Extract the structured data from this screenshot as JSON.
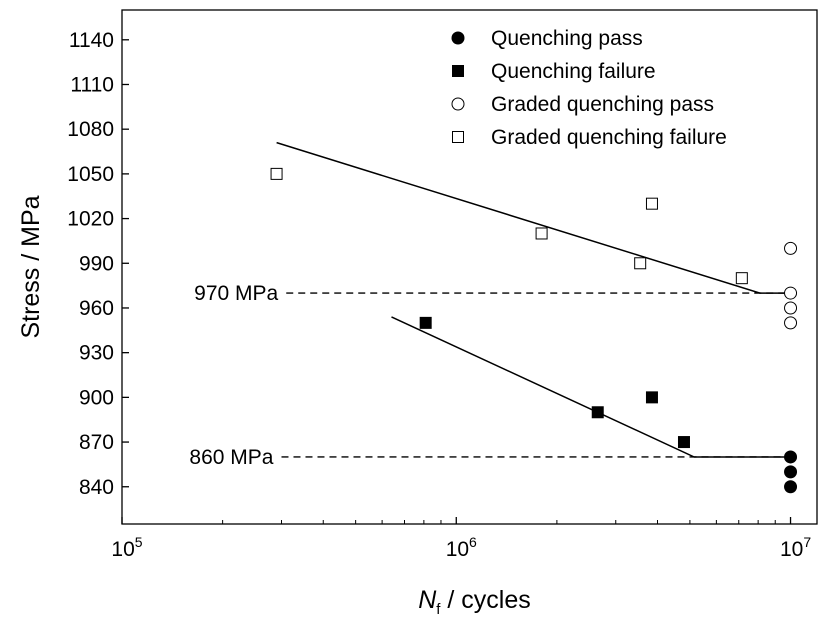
{
  "chart_data": {
    "type": "scatter",
    "x_scale": "log",
    "xlim": [
      100000,
      12000000
    ],
    "ylim": [
      815,
      1160
    ],
    "x_ticks": [
      {
        "value": 100000,
        "base": "10",
        "exp": "5"
      },
      {
        "value": 1000000,
        "base": "10",
        "exp": "6"
      },
      {
        "value": 10000000,
        "base": "10",
        "exp": "7"
      }
    ],
    "y_ticks": [
      840,
      870,
      900,
      930,
      960,
      990,
      1020,
      1050,
      1080,
      1110,
      1140
    ],
    "y_tick_labels": [
      "840",
      "870",
      "900",
      "930",
      "960",
      "990",
      "1020",
      "1050",
      "1080",
      "1110",
      "1140"
    ],
    "ylabel": "Stress / MPa",
    "xlabel_var": "N",
    "xlabel_sub": "f",
    "xlabel_rest": " / cycles",
    "legend_position": "top-right",
    "series": [
      {
        "name": "Quenching pass",
        "marker": "filled-circle",
        "points": [
          [
            10000000,
            860
          ],
          [
            10000000,
            850
          ],
          [
            10000000,
            840
          ]
        ]
      },
      {
        "name": "Quenching failure",
        "marker": "filled-square",
        "points": [
          [
            810000,
            950
          ],
          [
            2650000,
            890
          ],
          [
            3850000,
            900
          ],
          [
            4800000,
            870
          ]
        ]
      },
      {
        "name": "Graded quenching pass",
        "marker": "open-circle",
        "points": [
          [
            10000000,
            1000
          ],
          [
            10000000,
            970
          ],
          [
            10000000,
            960
          ],
          [
            10000000,
            950
          ]
        ]
      },
      {
        "name": "Graded quenching failure",
        "marker": "open-square",
        "points": [
          [
            290000,
            1050
          ],
          [
            1800000,
            1010
          ],
          [
            3550000,
            990
          ],
          [
            3850000,
            1030
          ],
          [
            7150000,
            980
          ]
        ]
      }
    ],
    "fit_lines": [
      {
        "points": [
          [
            290000,
            1071
          ],
          [
            8100000,
            970
          ],
          [
            10000000,
            970
          ]
        ]
      },
      {
        "points": [
          [
            640000,
            954
          ],
          [
            5150000,
            860
          ],
          [
            10000000,
            860
          ]
        ]
      }
    ],
    "reference_lines": [
      {
        "label": "970 MPa",
        "y": 970,
        "x_range": [
          310000,
          10000000
        ]
      },
      {
        "label": "860 MPa",
        "y": 860,
        "x_range": [
          300000,
          10000000
        ]
      }
    ]
  }
}
